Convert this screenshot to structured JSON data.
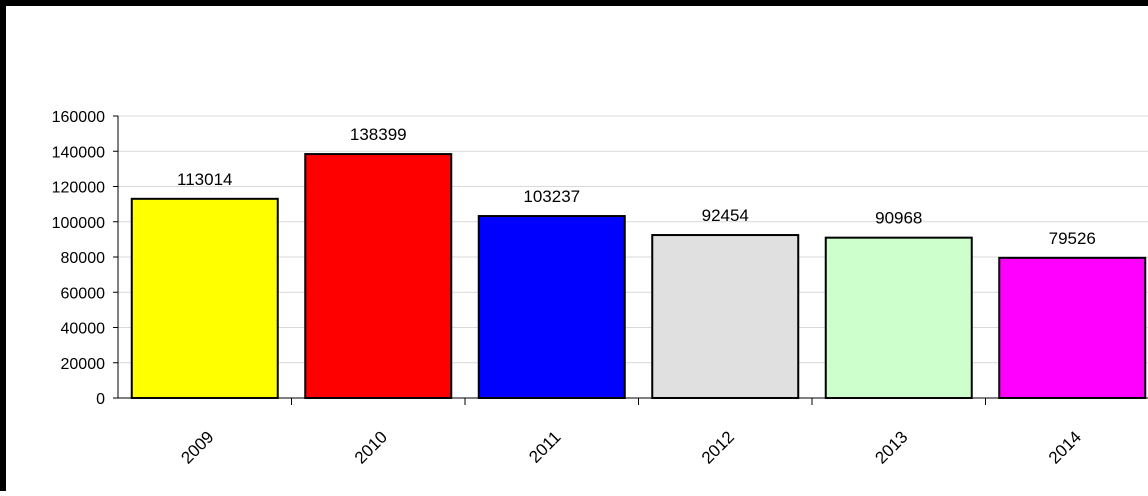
{
  "chart_data": {
    "type": "bar",
    "title": "",
    "xlabel": "",
    "ylabel": "",
    "categories": [
      "2009",
      "2010",
      "2011",
      "2012",
      "2013",
      "2014"
    ],
    "values": [
      113014,
      138399,
      103237,
      92454,
      90968,
      79526
    ],
    "data_labels": [
      "113014",
      "138399",
      "103237",
      "92454",
      "90968",
      "79526"
    ],
    "bar_colors": [
      "#ffff00",
      "#ff0000",
      "#0000ff",
      "#e0e0e0",
      "#ccffcc",
      "#ff00ff"
    ],
    "ylim": [
      0,
      160000
    ],
    "y_ticks": [
      0,
      20000,
      40000,
      60000,
      80000,
      100000,
      120000,
      140000,
      160000
    ],
    "y_tick_labels": [
      "0",
      "20000",
      "40000",
      "60000",
      "80000",
      "100000",
      "120000",
      "140000",
      "160000"
    ],
    "grid": true,
    "legend": "none",
    "x_tick_label_rotation": "diagonal"
  }
}
